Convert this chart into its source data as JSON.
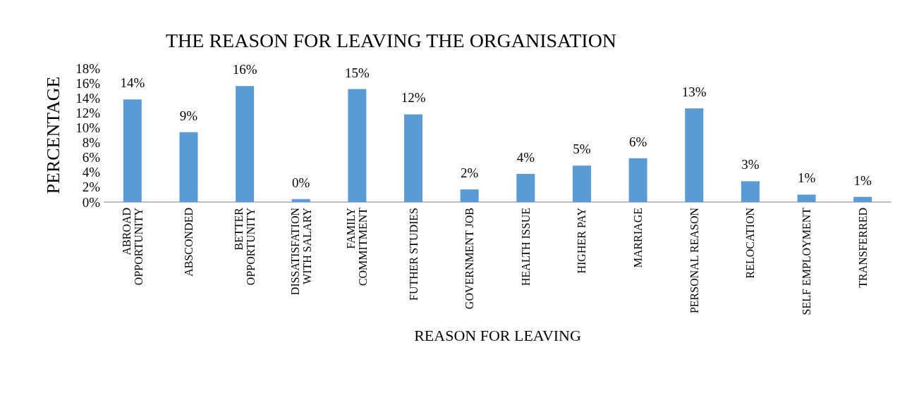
{
  "chart_data": {
    "type": "bar",
    "title": "THE REASON FOR LEAVING THE ORGANISATION",
    "xlabel": "REASON FOR LEAVING",
    "ylabel": "PERCENTAGE",
    "categories": [
      "ABROAD OPPORTUNITY",
      "ABSCONDED",
      "BETTER OPPORTUNITY",
      "DISSATISFATION WITH SALARY",
      "FAMILY COMMITMENT",
      "FUTHER STUDIES",
      "GOVERNMENT JOB",
      "HEALTH ISSUE",
      "HIGHER PAY",
      "MARRIAGE",
      "PERSONAL REASON",
      "RELOCATION",
      "SELF EMPLOYMENT",
      "TRANSFERRED"
    ],
    "values": [
      13.8,
      9.4,
      15.6,
      0.4,
      15.2,
      11.8,
      1.7,
      3.8,
      4.9,
      5.9,
      12.6,
      2.8,
      1.0,
      0.7
    ],
    "value_labels": [
      "14%",
      "9%",
      "16%",
      "0%",
      "15%",
      "12%",
      "2%",
      "4%",
      "5%",
      "6%",
      "13%",
      "3%",
      "1%",
      "1%"
    ],
    "color": "#5b9bd5",
    "ylim": [
      0,
      18
    ],
    "yticks": [
      {
        "value": 0,
        "label": "0%"
      },
      {
        "value": 2,
        "label": "2%"
      },
      {
        "value": 4,
        "label": "4%"
      },
      {
        "value": 6,
        "label": "6%"
      },
      {
        "value": 8,
        "label": "8%"
      },
      {
        "value": 10,
        "label": "10%"
      },
      {
        "value": 12,
        "label": "12%"
      },
      {
        "value": 14,
        "label": "14%"
      },
      {
        "value": 16,
        "label": "16%"
      },
      {
        "value": 18,
        "label": "18%"
      }
    ],
    "grid": false
  }
}
